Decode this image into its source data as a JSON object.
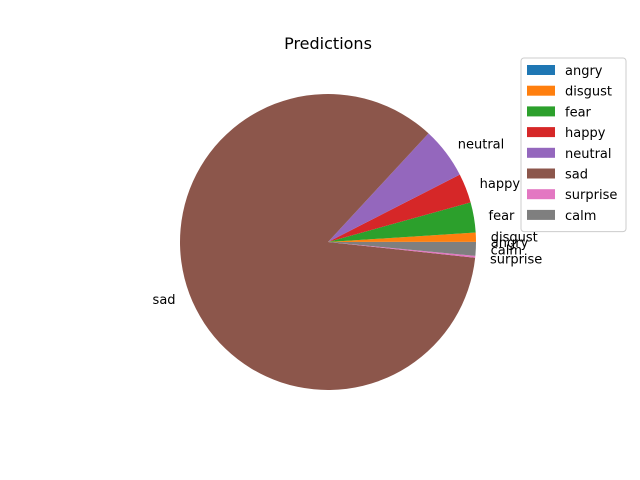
{
  "chart_data": {
    "type": "pie",
    "title": "Predictions",
    "start_angle_deg": 0,
    "direction": "counterclockwise",
    "slices": [
      {
        "label": "angry",
        "value": 0.0002,
        "color": "#1f77b4"
      },
      {
        "label": "disgust",
        "value": 0.01,
        "color": "#ff7f0e"
      },
      {
        "label": "fear",
        "value": 0.033,
        "color": "#2ca02c"
      },
      {
        "label": "happy",
        "value": 0.032,
        "color": "#d62728"
      },
      {
        "label": "neutral",
        "value": 0.056,
        "color": "#9467bd"
      },
      {
        "label": "sad",
        "value": 0.852,
        "color": "#8c564b"
      },
      {
        "label": "surprise",
        "value": 0.002,
        "color": "#e377c2"
      },
      {
        "label": "calm",
        "value": 0.015,
        "color": "#7f7f7f"
      }
    ],
    "legend": {
      "position": "top-right"
    }
  }
}
